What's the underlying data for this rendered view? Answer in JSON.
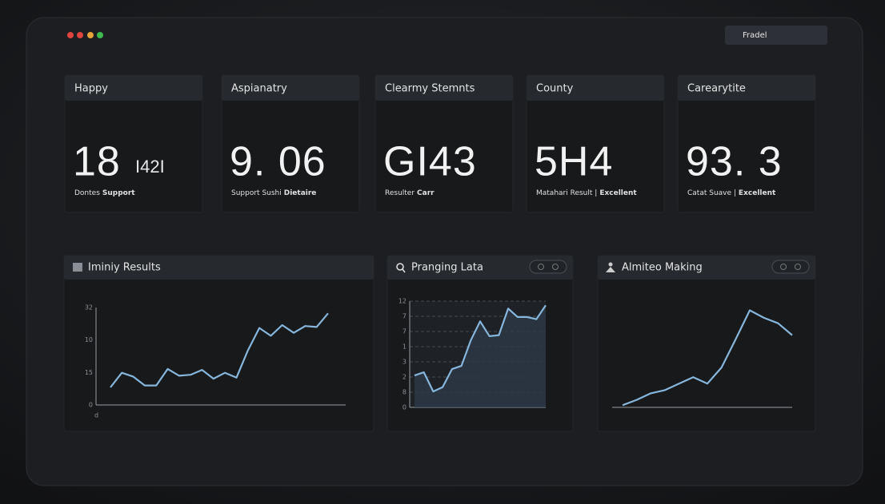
{
  "window": {
    "button": "Fradel"
  },
  "cards": [
    {
      "title": "Happy",
      "value": "18",
      "secondary": "I42I",
      "caption": "Dontes",
      "caption_bold": "Support"
    },
    {
      "title": "Aspianatry",
      "value": "9. 06",
      "caption": "Support Sushi",
      "caption_bold": "Dietaire"
    },
    {
      "title": "Clearmy Stemnts",
      "value": "GI43",
      "caption": "Resulter",
      "caption_bold": "Carr"
    },
    {
      "title": "County",
      "value": "5H4",
      "caption": "Matahari Result |",
      "caption_bold": "Excellent"
    },
    {
      "title": "Carearytite",
      "value": "93. 3",
      "caption": "Catat Suave |",
      "caption_bold": "Excellent"
    }
  ],
  "panels": [
    {
      "title": "Iminiy Results",
      "chart_data": {
        "type": "line",
        "color": "#86b6dc",
        "ylim": [
          0,
          100
        ],
        "y_axis_labels": [
          "32",
          "10",
          "15",
          "0"
        ],
        "x_axis_label": "d",
        "values": [
          18,
          33,
          29,
          20,
          20,
          37,
          30,
          31,
          36,
          27,
          33,
          28,
          56,
          79,
          71,
          82,
          74,
          81,
          80,
          94
        ]
      }
    },
    {
      "title": "Pranging Lata",
      "chart_data": {
        "type": "area",
        "color": "#86b6dc",
        "ylim": [
          0,
          100
        ],
        "y_axis_labels": [
          "12",
          "7",
          "7",
          "1",
          "3",
          "2",
          "8",
          "0"
        ],
        "grid": true,
        "values": [
          30,
          33,
          15,
          19,
          36,
          39,
          63,
          81,
          67,
          68,
          93,
          85,
          85,
          83,
          96
        ]
      }
    },
    {
      "title": "Almiteo Making",
      "chart_data": {
        "type": "line",
        "color": "#86b6dc",
        "ylim": [
          0,
          100
        ],
        "values": [
          2,
          7,
          13,
          16,
          22,
          28,
          22,
          37,
          63,
          90,
          83,
          78,
          67
        ]
      }
    }
  ]
}
